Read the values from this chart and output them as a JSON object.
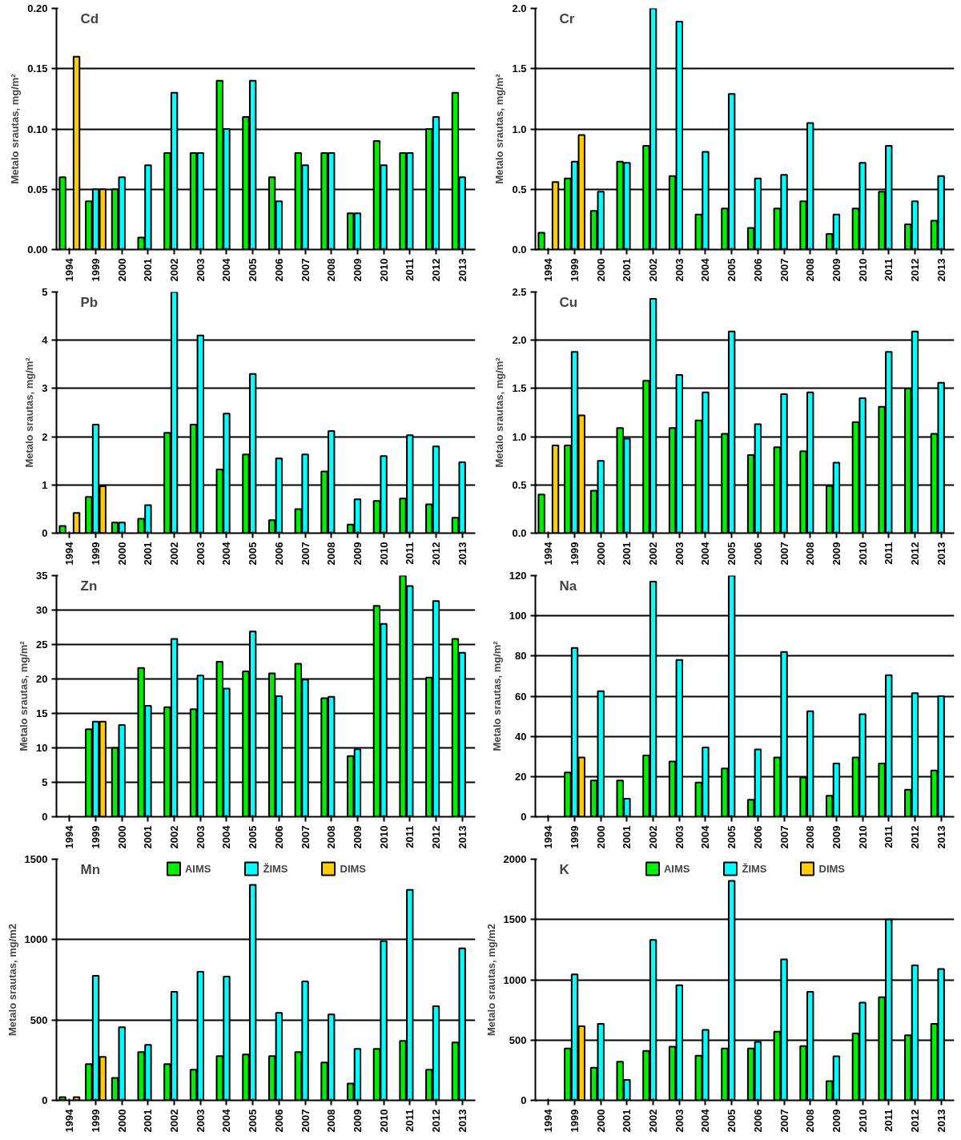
{
  "chart_data": [
    {
      "type": "bar",
      "title": "Cd",
      "ylabel": "Metalo srautas, mg/m²",
      "categories": [
        "1994",
        "1999",
        "2000",
        "2001",
        "2002",
        "2003",
        "2004",
        "2005",
        "2006",
        "2007",
        "2008",
        "2009",
        "2010",
        "2011",
        "2012",
        "2013"
      ],
      "series": [
        {
          "color": "#00ee00",
          "values": [
            0.06,
            0.04,
            0.05,
            0.01,
            0.08,
            0.08,
            0.14,
            0.11,
            0.06,
            0.08,
            0.08,
            0.03,
            0.09,
            0.08,
            0.1,
            0.13
          ]
        },
        {
          "color": "#00ffff",
          "values": [
            null,
            0.05,
            0.06,
            0.07,
            0.13,
            0.08,
            0.1,
            0.14,
            0.04,
            0.07,
            0.08,
            0.03,
            0.07,
            0.08,
            0.11,
            0.06
          ]
        },
        {
          "color": "#ffcc00",
          "values": [
            0.16,
            0.05,
            null,
            null,
            null,
            null,
            null,
            null,
            null,
            null,
            null,
            null,
            null,
            null,
            null,
            null
          ]
        }
      ],
      "ylim": [
        0,
        0.2
      ],
      "yticks": [
        {
          "value": 0,
          "label": "0.00"
        },
        {
          "value": 0.05,
          "label": "0.05"
        },
        {
          "value": 0.1,
          "label": "0.10"
        },
        {
          "value": 0.15,
          "label": "0.15"
        },
        {
          "value": 0.2,
          "label": "0.20"
        }
      ],
      "grid": "y",
      "legend": false
    },
    {
      "type": "bar",
      "title": "Cr",
      "ylabel": "Metalo srautas, mg/m²",
      "categories": [
        "1994",
        "1999",
        "2000",
        "2001",
        "2002",
        "2003",
        "2004",
        "2005",
        "2006",
        "2007",
        "2008",
        "2009",
        "2010",
        "2011",
        "2012",
        "2013"
      ],
      "series": [
        {
          "color": "#00ee00",
          "values": [
            0.14,
            0.59,
            0.32,
            0.73,
            0.86,
            0.61,
            0.29,
            0.34,
            0.18,
            0.34,
            0.4,
            0.13,
            0.34,
            0.48,
            0.21,
            0.24
          ]
        },
        {
          "color": "#00ffff",
          "values": [
            null,
            0.73,
            0.48,
            0.72,
            2.0,
            1.89,
            0.81,
            1.29,
            0.59,
            0.62,
            1.05,
            0.29,
            0.72,
            0.86,
            0.4,
            0.61
          ]
        },
        {
          "color": "#ffcc00",
          "values": [
            0.56,
            0.95,
            null,
            null,
            null,
            null,
            null,
            null,
            null,
            null,
            null,
            null,
            null,
            null,
            null,
            null
          ]
        }
      ],
      "ylim": [
        0,
        2.0
      ],
      "yticks": [
        {
          "value": 0,
          "label": "0.0"
        },
        {
          "value": 0.5,
          "label": "0.5"
        },
        {
          "value": 1,
          "label": "1.0"
        },
        {
          "value": 1.5,
          "label": "1.5"
        },
        {
          "value": 2,
          "label": "2.0"
        }
      ],
      "grid": "y",
      "legend": false
    },
    {
      "type": "bar",
      "title": "Pb",
      "ylabel": "Metalo srautas, mg/m²",
      "categories": [
        "1994",
        "1999",
        "2000",
        "2001",
        "2002",
        "2003",
        "2004",
        "2005",
        "2006",
        "2007",
        "2008",
        "2009",
        "2010",
        "2011",
        "2012",
        "2013"
      ],
      "series": [
        {
          "color": "#00ee00",
          "values": [
            0.15,
            0.75,
            0.22,
            0.3,
            2.08,
            2.25,
            1.32,
            1.63,
            0.27,
            0.5,
            1.28,
            0.18,
            0.67,
            0.72,
            0.6,
            0.32
          ]
        },
        {
          "color": "#00ffff",
          "values": [
            null,
            2.25,
            0.22,
            0.58,
            5,
            4.1,
            2.48,
            3.3,
            1.55,
            1.63,
            2.12,
            0.7,
            1.6,
            2.03,
            1.8,
            1.47
          ]
        },
        {
          "color": "#ffcc00",
          "values": [
            0.42,
            0.97,
            null,
            null,
            null,
            null,
            null,
            null,
            null,
            null,
            null,
            null,
            null,
            null,
            null,
            null
          ]
        }
      ],
      "ylim": [
        0,
        5
      ],
      "yticks": [
        0,
        1,
        2,
        3,
        4,
        5
      ],
      "grid": "y",
      "legend": false
    },
    {
      "type": "bar",
      "title": "Cu",
      "ylabel": "Metalo srautas, mg/m²",
      "categories": [
        "1994",
        "1999",
        "2000",
        "2001",
        "2002",
        "2003",
        "2004",
        "2005",
        "2006",
        "2007",
        "2008",
        "2009",
        "2010",
        "2011",
        "2012",
        "2013"
      ],
      "series": [
        {
          "color": "#00ee00",
          "values": [
            0.4,
            0.91,
            0.44,
            1.09,
            1.58,
            1.09,
            1.17,
            1.03,
            0.81,
            0.89,
            0.85,
            0.49,
            1.15,
            1.31,
            1.5,
            1.03
          ]
        },
        {
          "color": "#00ffff",
          "values": [
            null,
            1.88,
            0.75,
            0.98,
            2.43,
            1.64,
            1.46,
            2.09,
            1.13,
            1.44,
            1.46,
            0.73,
            1.4,
            1.88,
            2.09,
            1.56
          ]
        },
        {
          "color": "#ffcc00",
          "values": [
            0.91,
            1.22,
            null,
            null,
            null,
            null,
            null,
            null,
            null,
            null,
            null,
            null,
            null,
            null,
            null,
            null
          ]
        }
      ],
      "ylim": [
        0,
        2.5
      ],
      "yticks": [
        {
          "value": 0,
          "label": "0.0"
        },
        {
          "value": 0.5,
          "label": "0.5"
        },
        {
          "value": 1,
          "label": "1.0"
        },
        {
          "value": 1.5,
          "label": "1.5"
        },
        {
          "value": 2,
          "label": "2.0"
        },
        {
          "value": 2.5,
          "label": "2.5"
        }
      ],
      "grid": "y",
      "legend": false
    },
    {
      "type": "bar",
      "title": "Zn",
      "ylabel": "Metalo srautas, mg/m²",
      "categories": [
        "1994",
        "1999",
        "2000",
        "2001",
        "2002",
        "2003",
        "2004",
        "2005",
        "2006",
        "2007",
        "2008",
        "2009",
        "2010",
        "2011",
        "2012",
        "2013"
      ],
      "series": [
        {
          "color": "#00ee00",
          "values": [
            null,
            12.7,
            10,
            21.6,
            15.9,
            15.6,
            22.5,
            21.1,
            20.8,
            22.2,
            17.2,
            8.8,
            30.6,
            35,
            20.2,
            25.8
          ]
        },
        {
          "color": "#00ffff",
          "values": [
            null,
            13.8,
            13.3,
            16.1,
            25.8,
            20.5,
            18.6,
            26.9,
            17.5,
            19.9,
            17.4,
            9.8,
            28,
            33.5,
            31.3,
            23.8
          ]
        },
        {
          "color": "#ffcc00",
          "values": [
            null,
            13.8,
            null,
            null,
            null,
            null,
            null,
            null,
            null,
            null,
            null,
            null,
            null,
            null,
            null,
            null
          ]
        }
      ],
      "ylim": [
        0,
        35
      ],
      "yticks": [
        0,
        5,
        10,
        15,
        20,
        25,
        30,
        35
      ],
      "grid": "y",
      "legend": false
    },
    {
      "type": "bar",
      "title": "Na",
      "ylabel": "Metalo srautas, mg/m²",
      "categories": [
        "1994",
        "1999",
        "2000",
        "2001",
        "2002",
        "2003",
        "2004",
        "2005",
        "2006",
        "2007",
        "2008",
        "2009",
        "2010",
        "2011",
        "2012",
        "2013"
      ],
      "series": [
        {
          "color": "#00ee00",
          "values": [
            null,
            22,
            18,
            18,
            30.5,
            27.5,
            17,
            24,
            8.5,
            29.5,
            19.5,
            10.5,
            29.5,
            26.5,
            13.5,
            23
          ]
        },
        {
          "color": "#00ffff",
          "values": [
            null,
            84,
            62.5,
            9,
            117,
            78,
            34.5,
            120,
            33.5,
            82,
            52.5,
            26.5,
            51,
            70.5,
            61.5,
            60
          ]
        },
        {
          "color": "#ffcc00",
          "values": [
            null,
            29.5,
            null,
            null,
            null,
            null,
            null,
            null,
            null,
            null,
            null,
            null,
            null,
            null,
            null,
            null
          ]
        }
      ],
      "ylim": [
        0,
        120
      ],
      "yticks": [
        0,
        20,
        40,
        60,
        80,
        100,
        120
      ],
      "grid": "y",
      "legend": false
    },
    {
      "type": "bar",
      "title": "Mn",
      "ylabel": "Metalo srautas, mg/m2",
      "categories": [
        "1994",
        "1999",
        "2000",
        "2001",
        "2002",
        "2003",
        "2004",
        "2005",
        "2006",
        "2007",
        "2008",
        "2009",
        "2010",
        "2011",
        "2012",
        "2013"
      ],
      "series": [
        {
          "name": "AIMS",
          "color": "#00ee00",
          "values": [
            20,
            225,
            140,
            300,
            225,
            190,
            275,
            285,
            275,
            300,
            235,
            105,
            320,
            370,
            190,
            360
          ]
        },
        {
          "name": "ŽIMS",
          "color": "#00ffff",
          "values": [
            null,
            775,
            455,
            345,
            675,
            800,
            770,
            1340,
            545,
            740,
            535,
            320,
            990,
            1310,
            585,
            945
          ]
        },
        {
          "name": "DIMS",
          "color": "#ffcc00",
          "values": [
            20,
            270,
            null,
            null,
            null,
            null,
            null,
            null,
            null,
            null,
            null,
            null,
            null,
            null,
            null,
            null
          ]
        }
      ],
      "ylim": [
        0,
        1500
      ],
      "yticks": [
        0,
        500,
        1000,
        1500
      ],
      "grid": "y",
      "legend": "top"
    },
    {
      "type": "bar",
      "title": "K",
      "ylabel": "Metalo srautas, mg/m2",
      "categories": [
        "1994",
        "1999",
        "2000",
        "2001",
        "2002",
        "2003",
        "2004",
        "2005",
        "2006",
        "2007",
        "2008",
        "2009",
        "2010",
        "2011",
        "2012",
        "2013"
      ],
      "series": [
        {
          "name": "AIMS",
          "color": "#00ee00",
          "values": [
            null,
            430,
            270,
            320,
            410,
            445,
            370,
            430,
            430,
            570,
            450,
            160,
            555,
            855,
            540,
            635
          ]
        },
        {
          "name": "ŽIMS",
          "color": "#00ffff",
          "values": [
            null,
            1045,
            635,
            170,
            1330,
            955,
            585,
            1820,
            485,
            1170,
            900,
            365,
            810,
            1500,
            1120,
            1090
          ]
        },
        {
          "name": "DIMS",
          "color": "#ffcc00",
          "values": [
            null,
            615,
            null,
            null,
            null,
            null,
            null,
            null,
            null,
            null,
            null,
            null,
            null,
            null,
            null,
            null
          ]
        }
      ],
      "ylim": [
        0,
        2000
      ],
      "yticks": [
        0,
        500,
        1000,
        1500,
        2000
      ],
      "grid": "y",
      "legend": "top"
    }
  ]
}
